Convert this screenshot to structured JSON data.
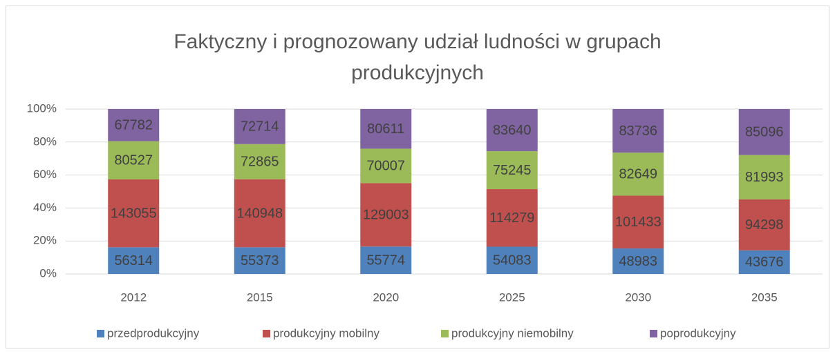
{
  "chart_data": {
    "type": "bar",
    "stacked": "percent",
    "title": "Faktyczny i prognozowany udział ludności w grupach produkcyjnych",
    "categories": [
      "2012",
      "2015",
      "2020",
      "2025",
      "2030",
      "2035"
    ],
    "series": [
      {
        "name": "przedprodukcyjny",
        "color": "#4f81bd",
        "values": [
          56314,
          55373,
          55774,
          54083,
          48983,
          43676
        ]
      },
      {
        "name": "produkcyjny mobilny",
        "color": "#c0504d",
        "values": [
          143055,
          140948,
          129003,
          114279,
          101433,
          94298
        ]
      },
      {
        "name": "produkcyjny niemobilny",
        "color": "#9bbb59",
        "values": [
          80527,
          72865,
          70007,
          75245,
          82649,
          81993
        ]
      },
      {
        "name": "poprodukcyjny",
        "color": "#8064a2",
        "values": [
          67782,
          72714,
          80611,
          83640,
          83736,
          85096
        ]
      }
    ],
    "ylim": [
      0,
      100
    ],
    "yticks": [
      {
        "value": 0,
        "label": "0%"
      },
      {
        "value": 20,
        "label": "20%"
      },
      {
        "value": 40,
        "label": "40%"
      },
      {
        "value": 60,
        "label": "60%"
      },
      {
        "value": 80,
        "label": "80%"
      },
      {
        "value": 100,
        "label": "100%"
      }
    ],
    "grid": true,
    "legend": "bottom"
  }
}
